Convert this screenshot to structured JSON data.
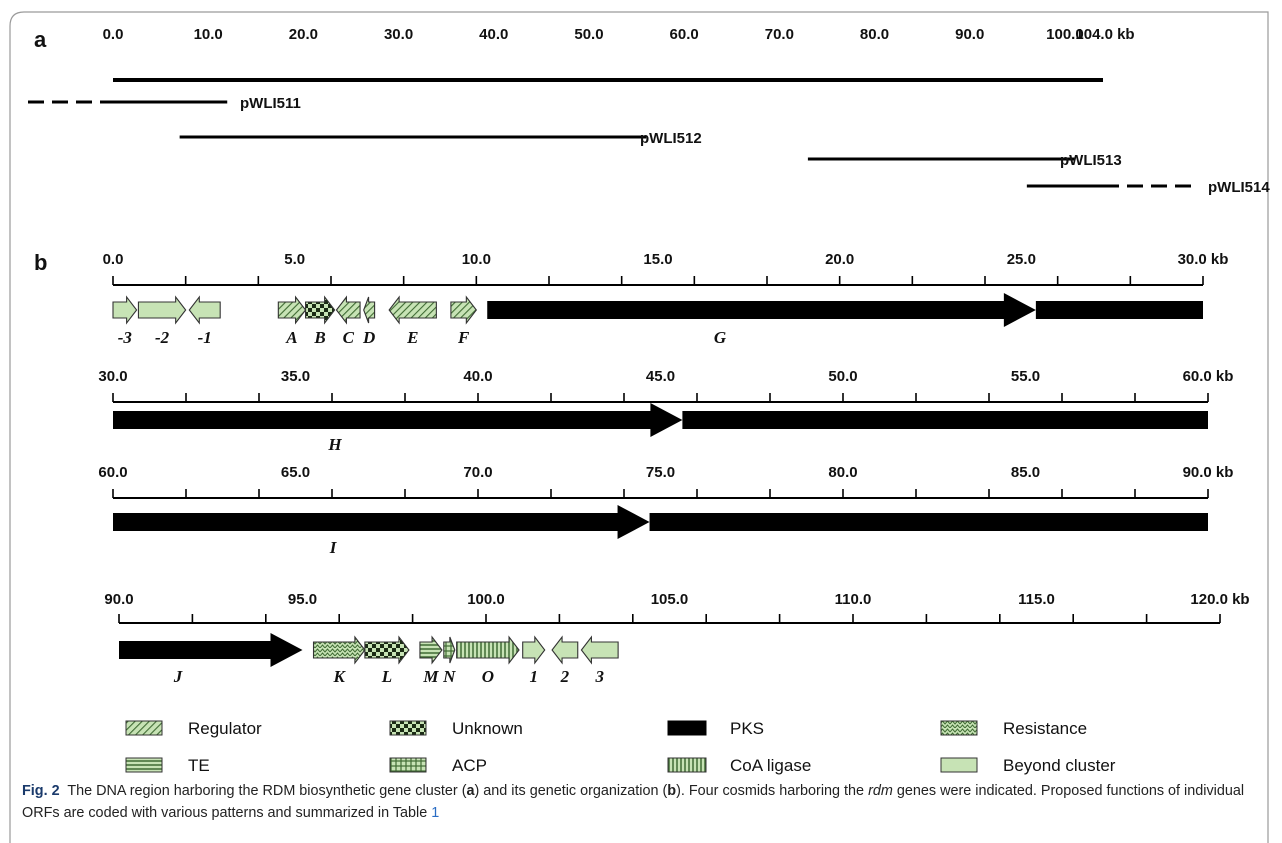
{
  "panel_a": {
    "label": "a",
    "scale_ticks": [
      "0.0",
      "10.0",
      "20.0",
      "30.0",
      "40.0",
      "50.0",
      "60.0",
      "70.0",
      "80.0",
      "90.0",
      "100.0"
    ],
    "scale_end": "104.0 kb",
    "cosmids": [
      {
        "name": "pWLI511",
        "start": 0,
        "end": 12,
        "dashed_left": true,
        "dashed_right": false
      },
      {
        "name": "pWLI512",
        "start": 7,
        "end": 56,
        "dashed_left": false,
        "dashed_right": false
      },
      {
        "name": "pWLI513",
        "start": 73,
        "end": 101,
        "dashed_left": false,
        "dashed_right": false
      },
      {
        "name": "pWLI514",
        "start": 96,
        "end": 104,
        "dashed_left": false,
        "dashed_right": true
      }
    ]
  },
  "panel_b": {
    "label": "b",
    "rows": [
      {
        "start": 0,
        "ticks": [
          "0.0",
          "5.0",
          "10.0",
          "15.0",
          "20.0",
          "25.0"
        ],
        "end": "30.0 kb",
        "genes": [
          {
            "label": "-3",
            "s": 0.0,
            "e": 0.65,
            "dir": "R",
            "type": "beyond"
          },
          {
            "label": "-2",
            "s": 0.7,
            "e": 2.0,
            "dir": "R",
            "type": "beyond"
          },
          {
            "label": "-1",
            "s": 2.1,
            "e": 2.95,
            "dir": "L",
            "type": "beyond"
          },
          {
            "label": "A",
            "s": 4.55,
            "e": 5.3,
            "dir": "R",
            "type": "regulator"
          },
          {
            "label": "B",
            "s": 5.3,
            "e": 6.1,
            "dir": "R",
            "type": "unknown"
          },
          {
            "label": "C",
            "s": 6.15,
            "e": 6.8,
            "dir": "L",
            "type": "regulator"
          },
          {
            "label": "D",
            "s": 6.9,
            "e": 7.2,
            "dir": "L",
            "type": "regulator"
          },
          {
            "label": "E",
            "s": 7.6,
            "e": 8.9,
            "dir": "L",
            "type": "regulator"
          },
          {
            "label": "F",
            "s": 9.3,
            "e": 10.0,
            "dir": "R",
            "type": "regulator"
          },
          {
            "label": "G",
            "s": 10.3,
            "e": 30.0,
            "dir": "R",
            "type": "pks",
            "head": 25.4
          }
        ]
      },
      {
        "start": 30,
        "ticks": [
          "30.0",
          "35.0",
          "40.0",
          "45.0",
          "50.0",
          "55.0"
        ],
        "end": "60.0 kb",
        "genes": [
          {
            "label": "H",
            "s": 30.0,
            "e": 60.0,
            "dir": "R",
            "type": "pks",
            "head": 45.6
          }
        ]
      },
      {
        "start": 60,
        "ticks": [
          "60.0",
          "65.0",
          "70.0",
          "75.0",
          "80.0",
          "85.0"
        ],
        "end": "90.0 kb",
        "genes": [
          {
            "label": "I",
            "s": 60.0,
            "e": 90.0,
            "dir": "R",
            "type": "pks",
            "head": 74.7
          }
        ]
      },
      {
        "start": 90,
        "ticks": [
          "90.0",
          "95.0",
          "100.0",
          "105.0",
          "110.0",
          "115.0"
        ],
        "end": "120.0 kb",
        "genes": [
          {
            "label": "J",
            "s": 90.0,
            "e": 95.0,
            "dir": "R",
            "type": "pks"
          },
          {
            "label": "K",
            "s": 95.3,
            "e": 96.7,
            "dir": "R",
            "type": "resistance"
          },
          {
            "label": "L",
            "s": 96.7,
            "e": 97.9,
            "dir": "R",
            "type": "unknown"
          },
          {
            "label": "M",
            "s": 98.2,
            "e": 98.8,
            "dir": "R",
            "type": "te"
          },
          {
            "label": "N",
            "s": 98.85,
            "e": 99.15,
            "dir": "R",
            "type": "acp"
          },
          {
            "label": "O",
            "s": 99.2,
            "e": 100.9,
            "dir": "R",
            "type": "coa"
          },
          {
            "label": "1",
            "s": 101.0,
            "e": 101.6,
            "dir": "R",
            "type": "beyond"
          },
          {
            "label": "2",
            "s": 101.8,
            "e": 102.5,
            "dir": "L",
            "type": "beyond"
          },
          {
            "label": "3",
            "s": 102.6,
            "e": 103.6,
            "dir": "L",
            "type": "beyond"
          }
        ]
      }
    ]
  },
  "legend": [
    {
      "type": "regulator",
      "label": "Regulator"
    },
    {
      "type": "unknown",
      "label": "Unknown"
    },
    {
      "type": "pks",
      "label": "PKS"
    },
    {
      "type": "resistance",
      "label": "Resistance"
    },
    {
      "type": "te",
      "label": "TE"
    },
    {
      "type": "acp",
      "label": "ACP"
    },
    {
      "type": "coa",
      "label": "CoA ligase"
    },
    {
      "type": "beyond",
      "label": "Beyond cluster"
    }
  ],
  "caption": {
    "fig_no": "Fig. 2",
    "part1": "The DNA region harboring the RDM biosynthetic gene cluster (",
    "a": "a",
    "part2": ") and its genetic organization (",
    "b": "b",
    "part3": "). Four cosmids harboring the ",
    "rdm": "rdm",
    "part4": " genes were indicated. Proposed functions of individual ORFs are coded with various patterns and summarized in Table ",
    "table_ref": "1"
  },
  "colors": {
    "frame": "#9a9a9a",
    "ink": "#111111",
    "pks": "#000000",
    "green_fill": "#c7e3b5",
    "pattern_green": "#3f6b33",
    "figno": "#1a3a6b",
    "link": "#2a6cc4"
  }
}
